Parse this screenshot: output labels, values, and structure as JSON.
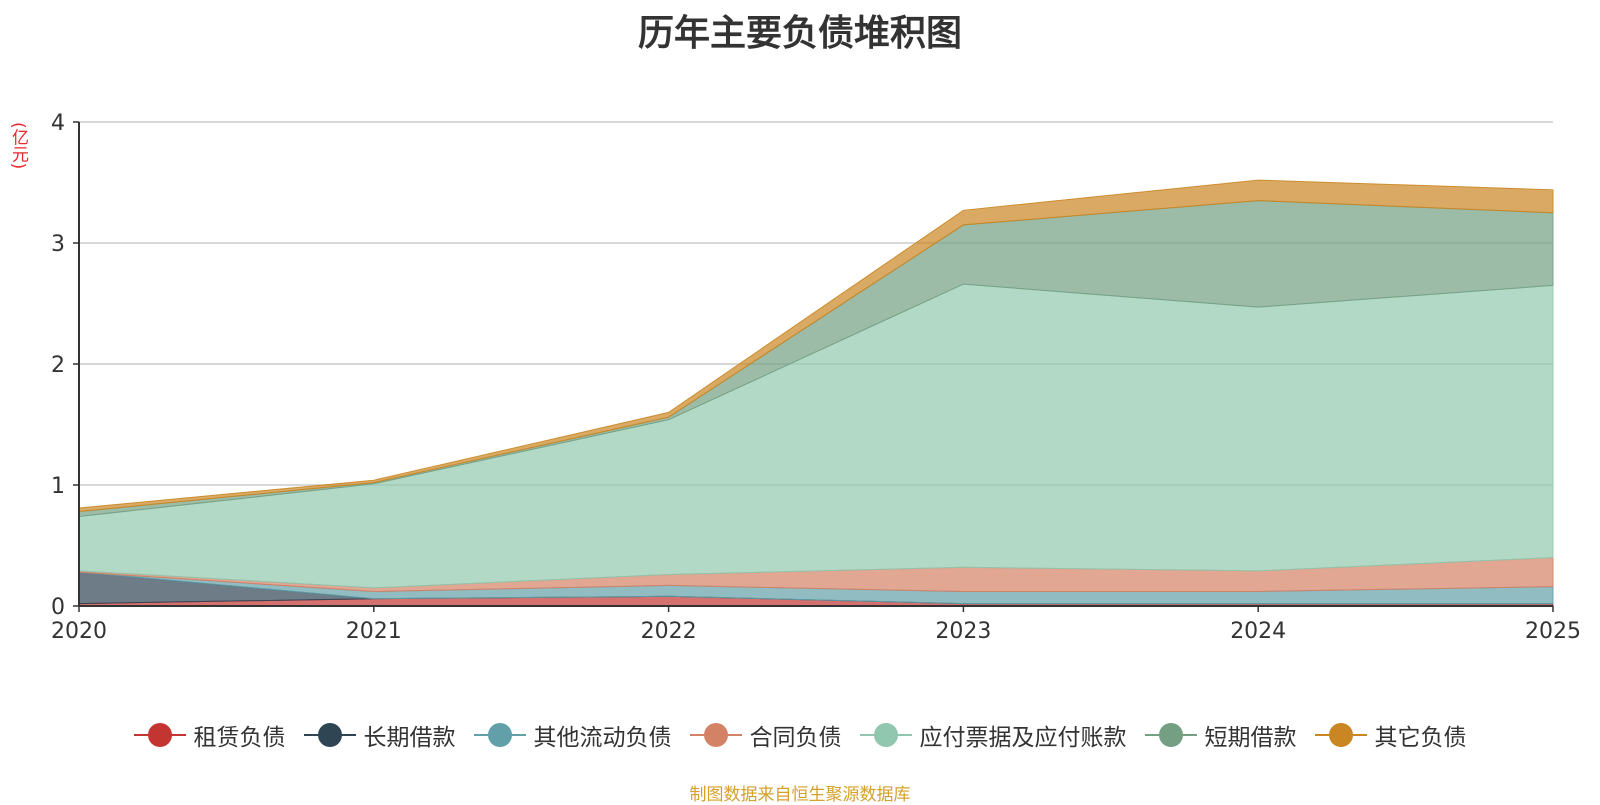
{
  "chart_data": {
    "type": "area",
    "stacked": true,
    "title": "历年主要负债堆积图",
    "ylabel": "(亿元)",
    "xlabel": "",
    "categories": [
      "2020",
      "2021",
      "2022",
      "2023",
      "2024",
      "2025"
    ],
    "ylim": [
      0,
      4
    ],
    "yticks": [
      "0",
      "1",
      "2",
      "3",
      "4"
    ],
    "grid": true,
    "legend_position": "bottom",
    "series": [
      {
        "name": "租赁负债",
        "color": "#c23531",
        "values": [
          0.02,
          0.06,
          0.08,
          0.02,
          0.02,
          0.02
        ]
      },
      {
        "name": "长期借款",
        "color": "#2f4554",
        "values": [
          0.26,
          0.0,
          0.0,
          0.0,
          0.0,
          0.0
        ]
      },
      {
        "name": "其他流动负债",
        "color": "#61a0a8",
        "values": [
          0.0,
          0.06,
          0.09,
          0.1,
          0.1,
          0.14
        ]
      },
      {
        "name": "合同负债",
        "color": "#d48265",
        "values": [
          0.01,
          0.03,
          0.09,
          0.2,
          0.17,
          0.24
        ]
      },
      {
        "name": "应付票据及应付账款",
        "color": "#91c7ae",
        "values": [
          0.45,
          0.86,
          1.28,
          2.34,
          2.18,
          2.25
        ]
      },
      {
        "name": "短期借款",
        "color": "#749f83",
        "values": [
          0.04,
          0.01,
          0.02,
          0.49,
          0.88,
          0.6
        ]
      },
      {
        "name": "其它负债",
        "color": "#ca8622",
        "values": [
          0.03,
          0.02,
          0.04,
          0.12,
          0.17,
          0.19
        ]
      }
    ]
  },
  "source_note": "制图数据来自恒生聚源数据库"
}
